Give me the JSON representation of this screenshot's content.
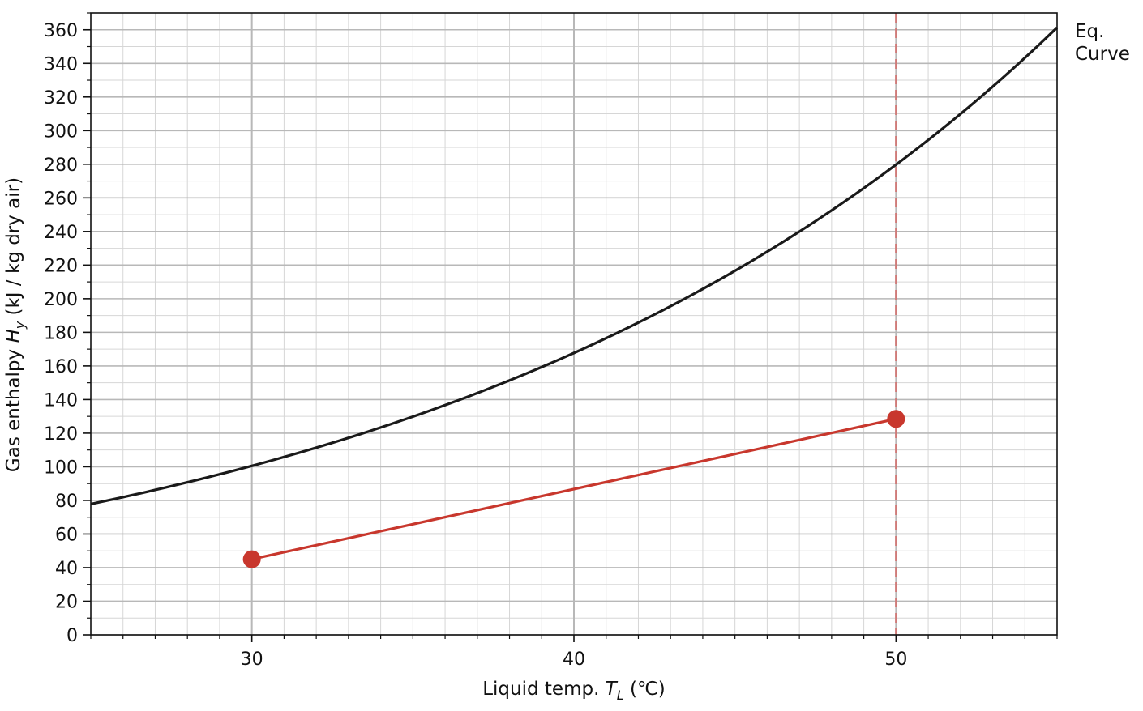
{
  "chart_data": {
    "type": "line",
    "title": "",
    "xlabel_parts": {
      "prefix": "Liquid temp. ",
      "symbol": "T",
      "subscript": "L",
      "suffix": " (℃)"
    },
    "ylabel_parts": {
      "prefix": "Gas enthalpy ",
      "symbol": "H",
      "subscript": "y",
      "suffix": " (kJ / kg dry air)"
    },
    "xlim": [
      25,
      55
    ],
    "ylim": [
      0,
      370
    ],
    "x_major_ticks": [
      30,
      40,
      50
    ],
    "x_tick_labels": [
      "30",
      "40",
      "50"
    ],
    "x_minor_step": 1,
    "y_major_ticks": [
      0,
      20,
      40,
      60,
      80,
      100,
      120,
      140,
      160,
      180,
      200,
      220,
      240,
      260,
      280,
      300,
      320,
      340,
      360
    ],
    "y_tick_labels": [
      "0",
      "20",
      "40",
      "60",
      "80",
      "100",
      "120",
      "140",
      "160",
      "180",
      "200",
      "220",
      "240",
      "260",
      "280",
      "300",
      "320",
      "340",
      "360"
    ],
    "y_minor_step": 10,
    "grid": true,
    "series": [
      {
        "kind": "curve",
        "color": "#1a1a1a",
        "x": [
          25,
          26,
          27,
          28,
          29,
          30,
          31,
          32,
          33,
          34,
          35,
          36,
          37,
          38,
          39,
          40,
          41,
          42,
          43,
          44,
          45,
          46,
          47,
          48,
          49,
          50,
          51,
          52,
          53,
          54,
          55
        ],
        "y": [
          76,
          80.5,
          85.2,
          90,
          95,
          100,
          105.5,
          111.5,
          117.5,
          124,
          131,
          138.5,
          146.5,
          155,
          164,
          166,
          175.5,
          185.5,
          196,
          207.5,
          219.5,
          232,
          245,
          259,
          273,
          274,
          289,
          304,
          320,
          336.5,
          353
        ]
      },
      {
        "kind": "operating-line",
        "color": "#c8372d",
        "x": [
          30,
          50
        ],
        "y": [
          45,
          128.5
        ],
        "markers": true
      }
    ],
    "vertical_lines": [
      {
        "x": 50,
        "color": "#d07a78",
        "style": "dashed"
      }
    ],
    "annotations": [
      {
        "lines": [
          "Eq.",
          "Curve"
        ]
      }
    ]
  }
}
